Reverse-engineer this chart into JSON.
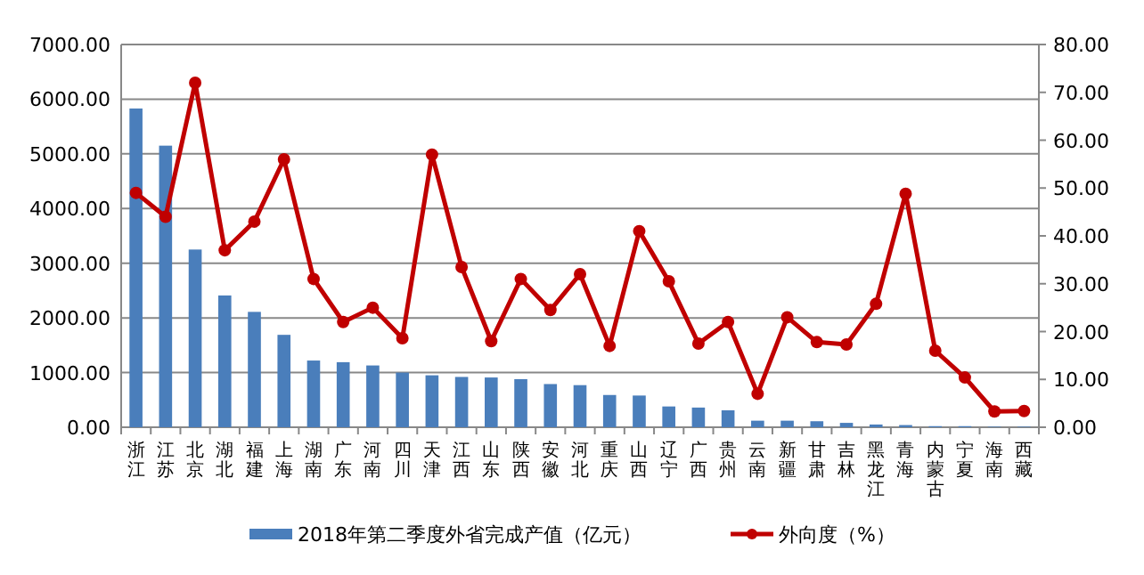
{
  "chart_data": {
    "type": "bar",
    "categories": [
      "浙江",
      "江苏",
      "北京",
      "湖北",
      "福建",
      "上海",
      "湖南",
      "广东",
      "河南",
      "四川",
      "天津",
      "江西",
      "山东",
      "陕西",
      "安徽",
      "河北",
      "重庆",
      "山西",
      "辽宁",
      "广西",
      "贵州",
      "云南",
      "新疆",
      "甘肃",
      "吉林",
      "黑龙江",
      "青海",
      "内蒙古",
      "宁夏",
      "海南",
      "西藏"
    ],
    "series": [
      {
        "name": "2018年第二季度外省完成产值（亿元）",
        "color": "#4a7ebb",
        "values": [
          5830,
          5150,
          3250,
          2410,
          2110,
          1690,
          1220,
          1190,
          1130,
          1000,
          950,
          920,
          910,
          880,
          790,
          770,
          590,
          580,
          380,
          360,
          310,
          120,
          120,
          110,
          80,
          50,
          40,
          20,
          20,
          10,
          10
        ]
      },
      {
        "name": "外向度（%）",
        "type": "line",
        "axis": "y2",
        "color": "#c00000",
        "marker": "circle",
        "values": [
          49,
          44,
          72,
          37,
          43,
          56,
          31,
          22,
          25,
          18.6,
          57,
          33.5,
          18,
          31,
          24.5,
          32,
          17,
          41,
          30.5,
          17.5,
          22,
          7,
          23,
          17.8,
          17.3,
          25.8,
          48.8,
          16,
          10.4,
          3.3,
          3.4
        ]
      }
    ],
    "ylim": [
      0,
      7000
    ],
    "yticks": [
      {
        "value": 0,
        "label": "0.00"
      },
      {
        "value": 1000,
        "label": "1000.00"
      },
      {
        "value": 2000,
        "label": "2000.00"
      },
      {
        "value": 3000,
        "label": "3000.00"
      },
      {
        "value": 4000,
        "label": "4000.00"
      },
      {
        "value": 5000,
        "label": "5000.00"
      },
      {
        "value": 6000,
        "label": "6000.00"
      },
      {
        "value": 7000,
        "label": "7000.00"
      }
    ],
    "y2lim": [
      0,
      80
    ],
    "y2ticks": [
      {
        "value": 0,
        "label": "0.00"
      },
      {
        "value": 10,
        "label": "10.00"
      },
      {
        "value": 20,
        "label": "20.00"
      },
      {
        "value": 30,
        "label": "30.00"
      },
      {
        "value": 40,
        "label": "40.00"
      },
      {
        "value": 50,
        "label": "50.00"
      },
      {
        "value": 60,
        "label": "60.00"
      },
      {
        "value": 70,
        "label": "70.00"
      },
      {
        "value": 80,
        "label": "80.00"
      }
    ],
    "grid": "y",
    "legend": "bottom"
  }
}
